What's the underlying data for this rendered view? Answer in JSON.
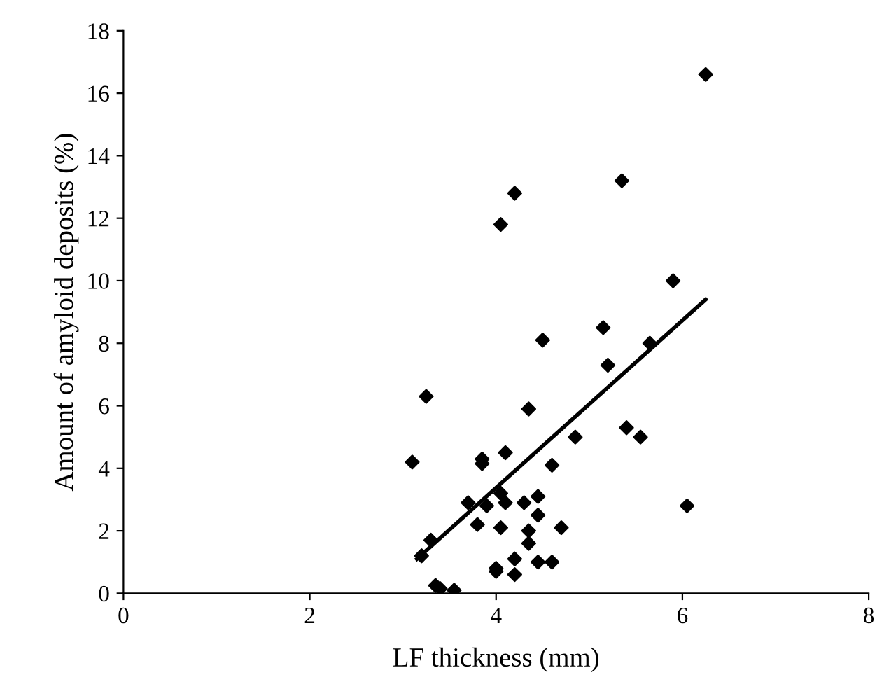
{
  "chart_data": {
    "type": "scatter",
    "xlabel": "LF thickness (mm)",
    "ylabel": "Amount of amyloid deposits (%)",
    "xlim": [
      0,
      8
    ],
    "ylim": [
      0,
      18
    ],
    "xticks": [
      0,
      2,
      4,
      6,
      8
    ],
    "yticks": [
      0,
      2,
      4,
      6,
      8,
      10,
      12,
      14,
      16,
      18
    ],
    "grid": false,
    "legend": false,
    "series": [
      {
        "marker": "diamond",
        "color": "#000000",
        "x": [
          3.1,
          3.25,
          3.2,
          3.3,
          3.35,
          3.4,
          3.55,
          3.7,
          3.8,
          3.85,
          3.85,
          3.9,
          4.0,
          4.0,
          4.05,
          4.05,
          4.1,
          4.1,
          4.05,
          4.2,
          4.2,
          4.2,
          4.3,
          4.35,
          4.35,
          4.35,
          4.45,
          4.45,
          4.45,
          4.5,
          4.6,
          4.6,
          4.7,
          4.85,
          5.15,
          5.2,
          5.35,
          5.4,
          5.55,
          5.65,
          5.9,
          6.05,
          6.25
        ],
        "values": [
          4.2,
          6.3,
          1.2,
          1.7,
          0.25,
          0.15,
          0.1,
          2.9,
          2.2,
          4.3,
          4.15,
          2.8,
          0.7,
          0.8,
          2.1,
          3.2,
          2.9,
          4.5,
          11.8,
          12.8,
          0.6,
          1.1,
          2.9,
          5.9,
          2.0,
          1.6,
          3.1,
          2.5,
          1.0,
          8.1,
          4.1,
          1.0,
          2.1,
          5.0,
          8.5,
          7.3,
          13.2,
          5.3,
          5.0,
          8.0,
          10.0,
          2.8,
          16.6
        ]
      },
      {
        "type": "line",
        "color": "#000000",
        "x": [
          3.15,
          6.25
        ],
        "values": [
          1.1,
          9.4
        ]
      }
    ]
  }
}
